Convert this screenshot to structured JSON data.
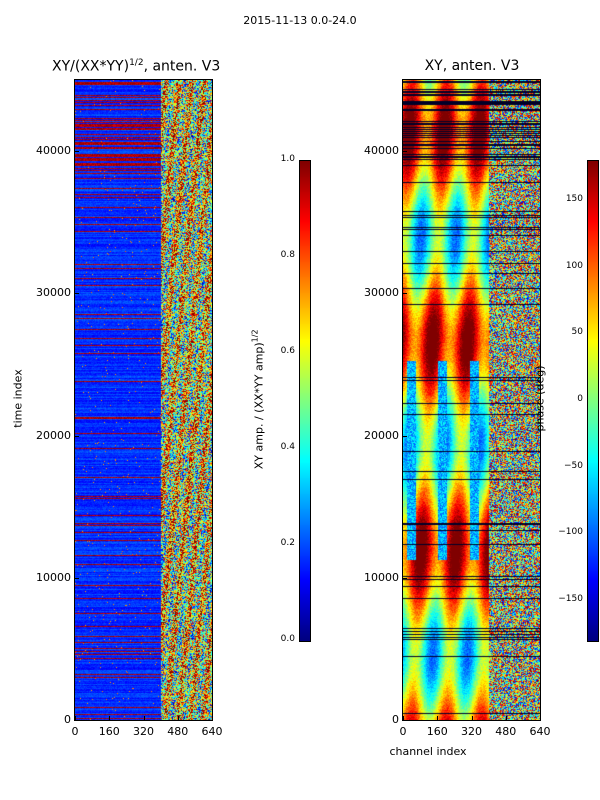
{
  "suptitle": "2015-11-13 0.0-24.0",
  "chart_data": [
    {
      "type": "heatmap",
      "title": "XY/(XX*YY)^{1/2}, anten. V3",
      "title_main": "XY/(XX*YY)",
      "title_sup": "1/2",
      "title_tail": ", anten. V3",
      "xlabel": "",
      "ylabel": "time index",
      "x_ticks": [
        0,
        160,
        320,
        480,
        640
      ],
      "y_ticks": [
        0,
        10000,
        20000,
        30000,
        40000
      ],
      "xlim": [
        0,
        640
      ],
      "ylim": [
        0,
        45000
      ],
      "colorbar": {
        "label": "XY amp. / (XX*YY amp)^{1/2}",
        "label_main": "XY amp. / (XX*YY amp)",
        "label_sup": "1/2",
        "ticks": [
          "1.0",
          "0.8",
          "0.6",
          "0.4",
          "0.2",
          "0.0"
        ],
        "range": [
          0.0,
          1.0
        ],
        "colormap": "jet"
      },
      "dominant_value_low_channels": 0.1,
      "dominant_value_high_channels": 0.6,
      "band_edge_channel": 400
    },
    {
      "type": "heatmap",
      "title": "XY, anten. V3",
      "xlabel": "channel index",
      "ylabel": "",
      "x_ticks": [
        0,
        160,
        320,
        480,
        640
      ],
      "y_ticks": [
        0,
        10000,
        20000,
        30000,
        40000
      ],
      "xlim": [
        0,
        640
      ],
      "ylim": [
        0,
        45000
      ],
      "colorbar": {
        "label": "phase (deg)",
        "ticks": [
          "150",
          "100",
          "50",
          "0",
          "−50",
          "−100",
          "−150"
        ],
        "range": [
          -180,
          180
        ],
        "colormap": "jet"
      }
    }
  ],
  "colors": {
    "jet_dark_blue": "#00008f",
    "jet_blue": "#0000ff",
    "jet_cyan": "#00ffff",
    "jet_yellow": "#ffff00",
    "jet_red": "#ff0000",
    "jet_dark_red": "#800000"
  }
}
